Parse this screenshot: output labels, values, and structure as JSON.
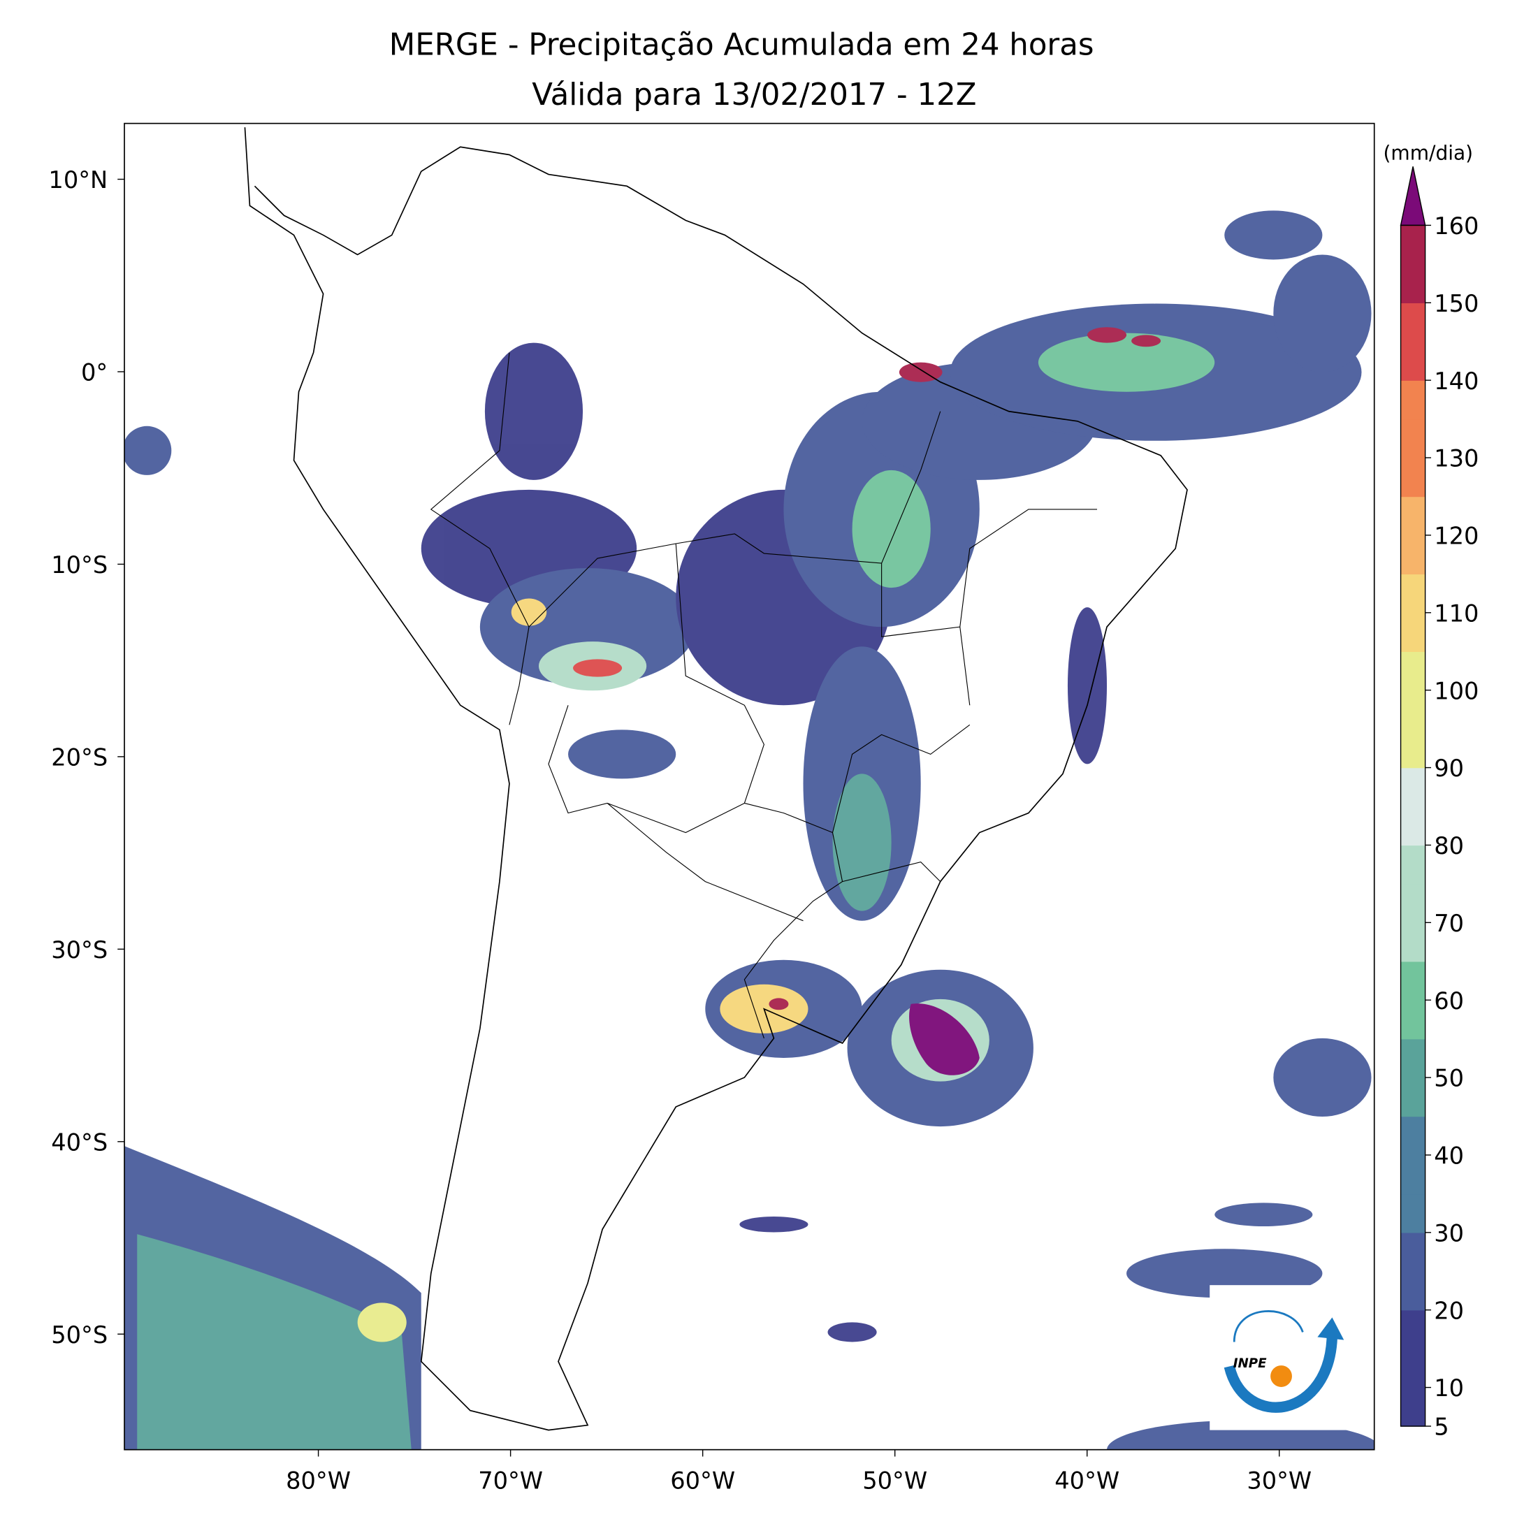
{
  "header": {
    "title": "MERGE - Precipitação Acumulada em 24 horas",
    "subtitle": "Válida para 13/02/2017 - 12Z"
  },
  "map": {
    "x_labels": [
      "80°W",
      "70°W",
      "60°W",
      "50°W",
      "40°W",
      "30°W"
    ],
    "y_labels": [
      "10°N",
      "0°",
      "10°S",
      "20°S",
      "30°S",
      "40°S",
      "50°S"
    ]
  },
  "colorbar": {
    "unit": "(mm/dia)",
    "lim": [
      5,
      160
    ],
    "ticks": [
      5,
      10,
      20,
      30,
      40,
      50,
      60,
      70,
      80,
      90,
      100,
      110,
      120,
      130,
      140,
      150,
      160
    ],
    "colors": [
      "#3e3f8c",
      "#4a5d9c",
      "#4d7fa0",
      "#5aa39a",
      "#72c49c",
      "#b3dcc8",
      "#dbe9e6",
      "#e8ec8c",
      "#f6d67a",
      "#f7b46a",
      "#f2834f",
      "#dd4b4b",
      "#a8224c"
    ],
    "over_color": "#7b0a78"
  },
  "logo": {
    "text": "INPE"
  }
}
